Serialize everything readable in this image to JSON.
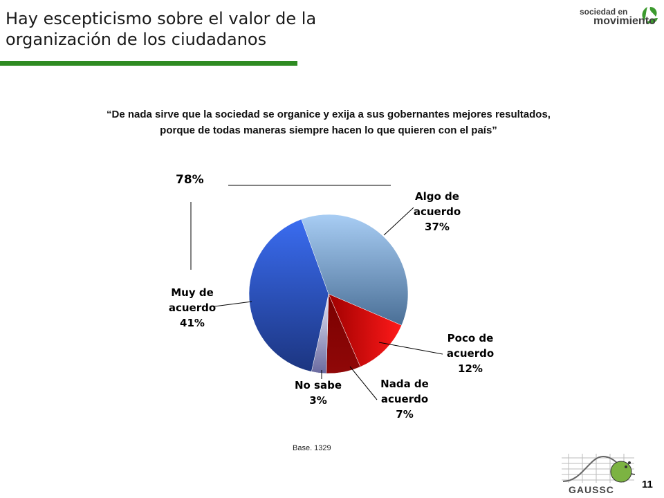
{
  "header": {
    "title_line1": "Hay escepticismo sobre el valor de la",
    "title_line2": "organización de los ciudadanos"
  },
  "brand": {
    "line1": "sociedad en",
    "line2": "movimiento"
  },
  "quote": {
    "line1": "“De nada sirve que la sociedad se organice y exija a sus gobernantes mejores resultados,",
    "line2": "porque de todas maneras siempre hacen lo que quieren con el país”"
  },
  "chart_data": {
    "type": "pie",
    "title": "",
    "slices": [
      {
        "label_line1": "Algo de",
        "label_line2": "acuerdo",
        "label": "Algo de acuerdo",
        "value": 37,
        "display": "37%",
        "color": "#8fb8e8"
      },
      {
        "label_line1": "Poco de",
        "label_line2": "acuerdo",
        "label": "Poco de acuerdo",
        "value": 12,
        "display": "12%",
        "color": "#e01010"
      },
      {
        "label_line1": "Nada de",
        "label_line2": "acuerdo",
        "label": "Nada de acuerdo",
        "value": 7,
        "display": "7%",
        "color": "#8a0000"
      },
      {
        "label_line1": "No sabe",
        "label_line2": "",
        "label": "No sabe",
        "value": 3,
        "display": "3%",
        "color": "#b0b0d8"
      },
      {
        "label_line1": "Muy de",
        "label_line2": "acuerdo",
        "label": "Muy de acuerdo",
        "value": 41,
        "display": "41%",
        "color": "#2a5ad8"
      }
    ],
    "annotation": "78%",
    "base_note": "Base. 1329"
  },
  "footer": {
    "page_number": "11",
    "logo_text": "GAUSSC"
  }
}
